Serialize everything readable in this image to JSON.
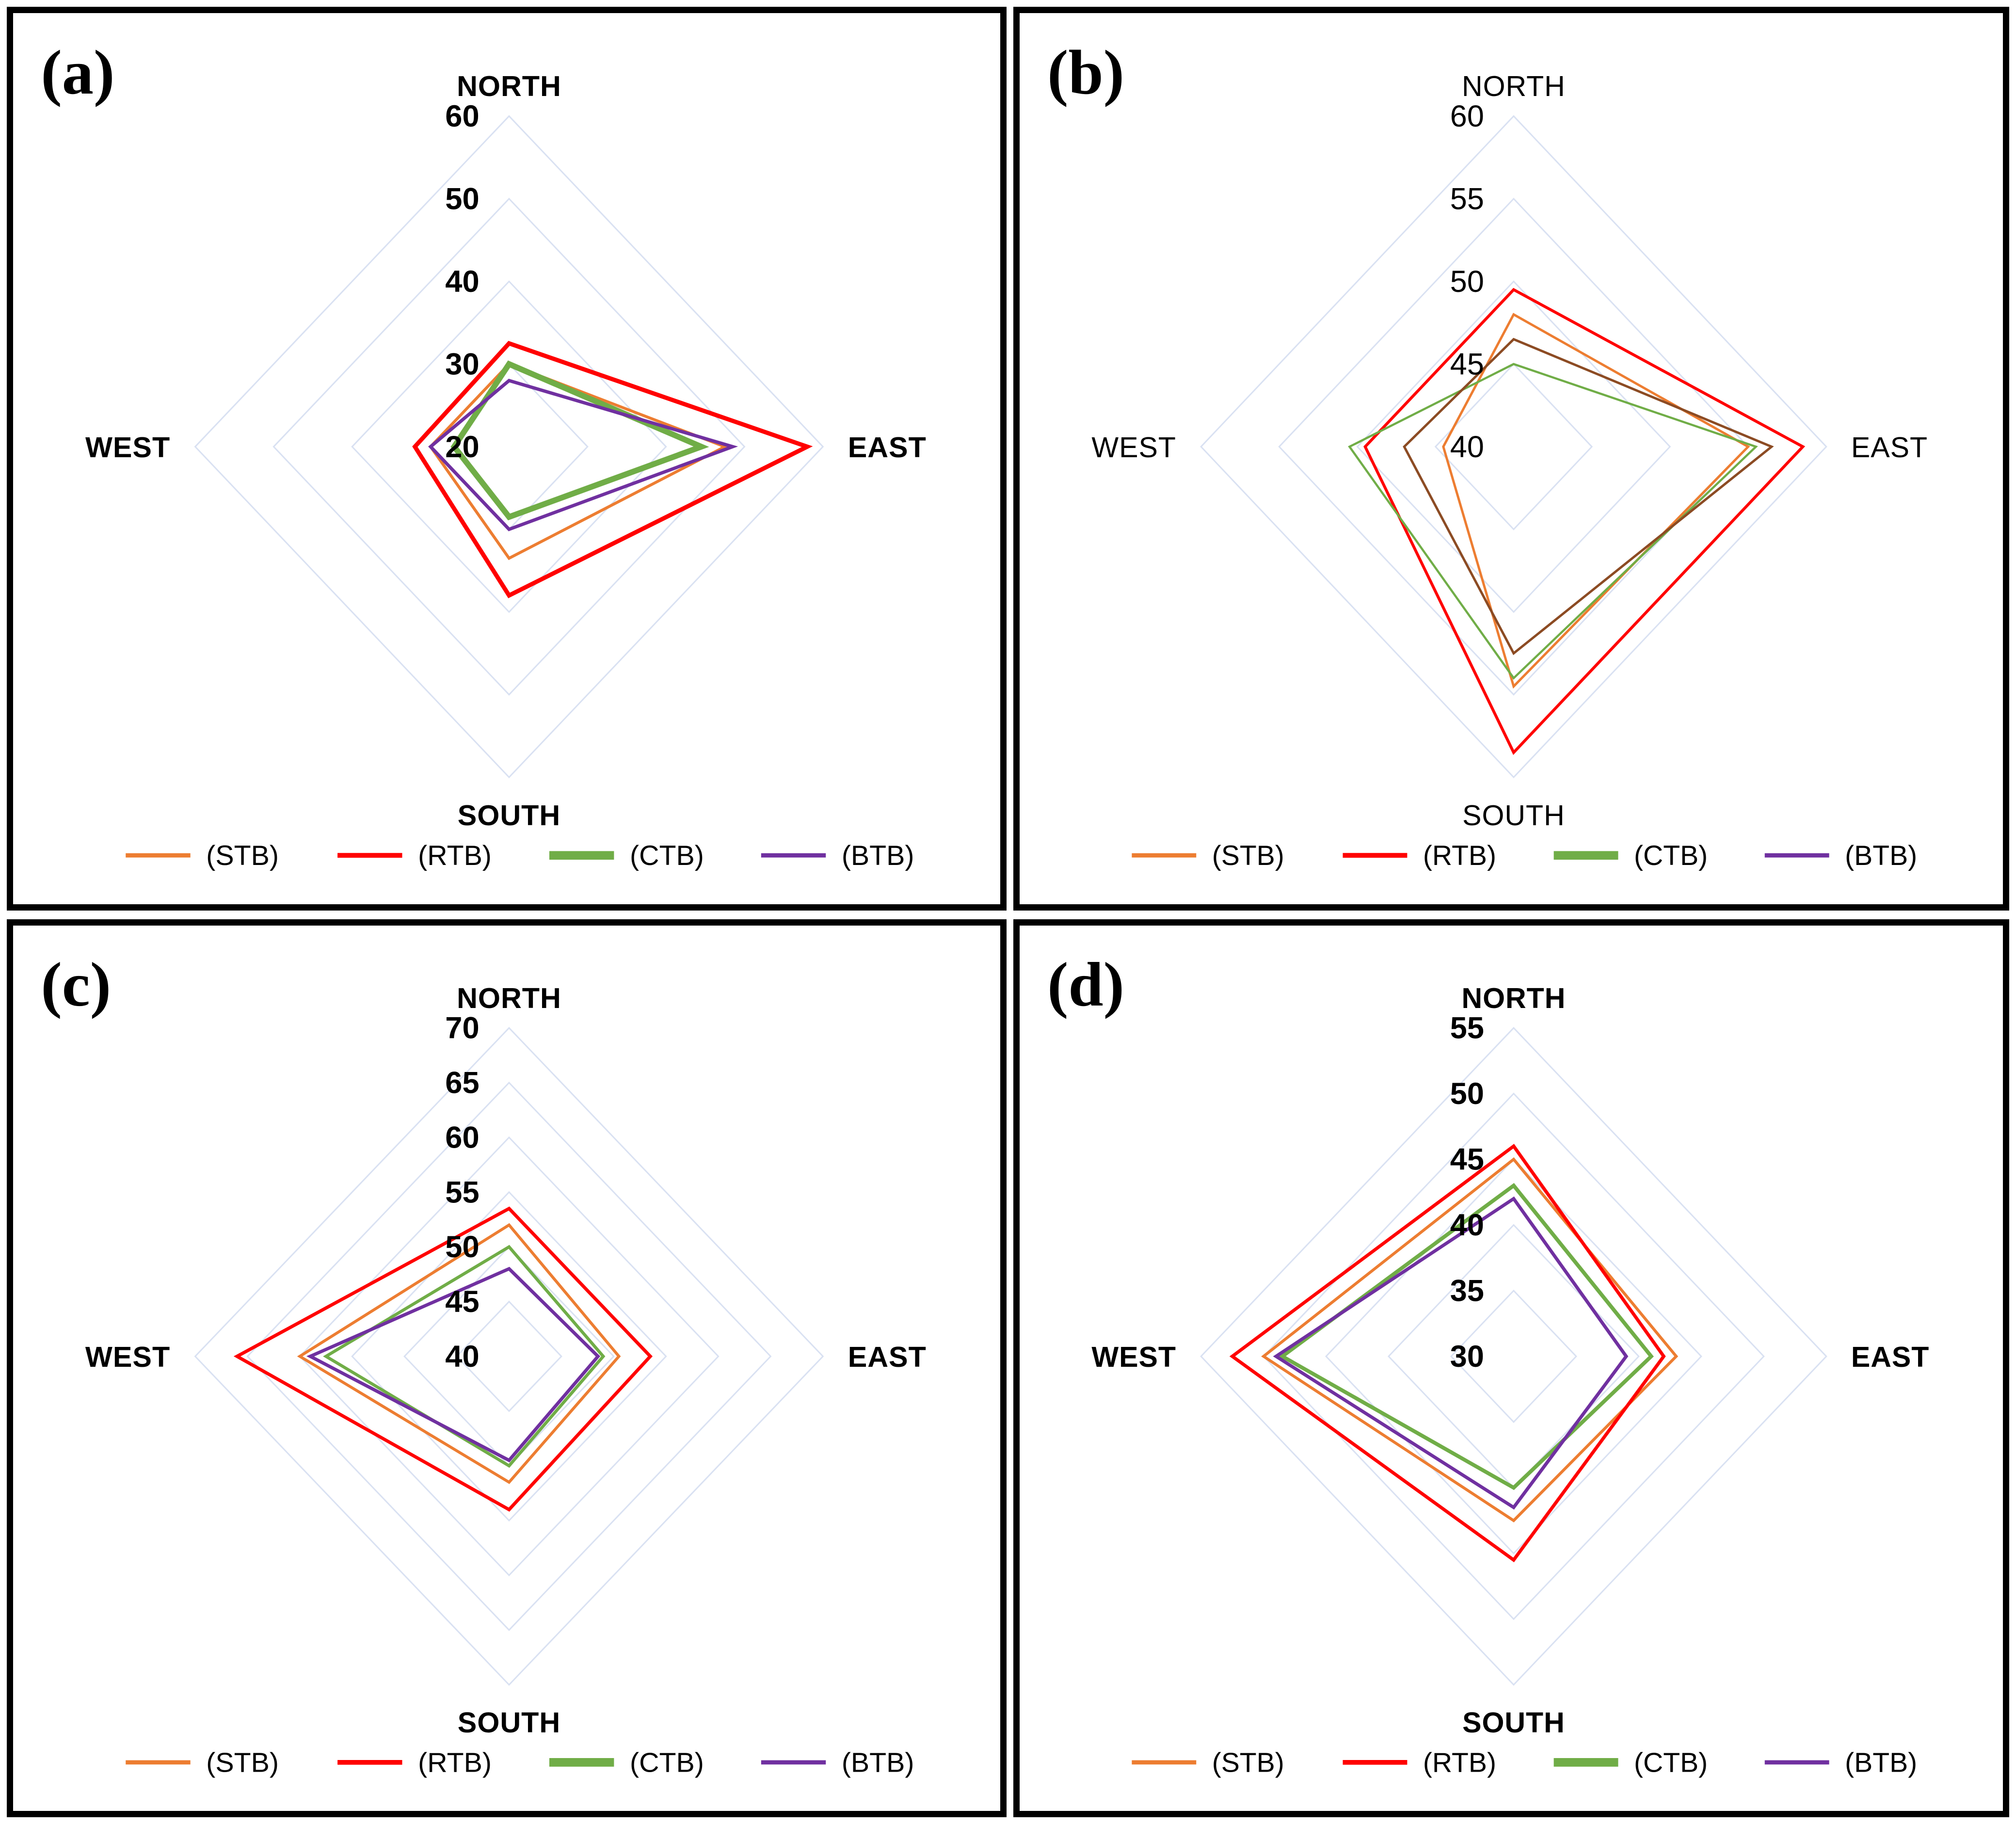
{
  "figure": {
    "kind": "2x2 grid of 4-axis radar (kite) charts",
    "background": "#ffffff",
    "grid_color": "#D9E1F2",
    "text_color": "#000000"
  },
  "directions": [
    "NORTH",
    "EAST",
    "SOUTH",
    "WEST"
  ],
  "legend_entries": [
    "(STB)",
    "(RTB)",
    "(CTB)",
    "(BTB)"
  ],
  "legend_colors": [
    "#ED7D31",
    "#FF0000",
    "#70AD47",
    "#7030A0"
  ],
  "legend_swatch_thickness": [
    9,
    10,
    18,
    9
  ],
  "chart_data": [
    {
      "type": "radar",
      "panel_label": "(a)",
      "categories": [
        "NORTH",
        "EAST",
        "SOUTH",
        "WEST"
      ],
      "axis": {
        "min": 20,
        "max": 60,
        "step": 10,
        "tick_labels": [
          60,
          50,
          40,
          30,
          20
        ],
        "grid": "concentric-diamonds",
        "grid_on": true
      },
      "label_style": "bold",
      "legend_position": "bottom",
      "series": [
        {
          "name": "(STB)",
          "color": "#ED7D31",
          "stroke": 6,
          "values": [
            30,
            47.5,
            33.5,
            30
          ]
        },
        {
          "name": "(RTB)",
          "color": "#FF0000",
          "stroke": 9,
          "values": [
            32.5,
            58,
            38,
            32
          ]
        },
        {
          "name": "(CTB)",
          "color": "#70AD47",
          "stroke": 12,
          "values": [
            30,
            44.5,
            28.5,
            27
          ]
        },
        {
          "name": "(BTB)",
          "color": "#7030A0",
          "stroke": 7,
          "values": [
            28,
            48.5,
            30,
            30
          ]
        }
      ]
    },
    {
      "type": "radar",
      "panel_label": "(b)",
      "categories": [
        "NORTH",
        "EAST",
        "SOUTH",
        "WEST"
      ],
      "axis": {
        "min": 40,
        "max": 60,
        "step": 5,
        "tick_labels": [
          60,
          55,
          50,
          45,
          40
        ],
        "grid": "concentric-diamonds",
        "grid_on": true
      },
      "label_style": "normal",
      "legend_position": "bottom",
      "series": [
        {
          "name": "(STB)",
          "color": "#ED7D31",
          "stroke": 5,
          "values": [
            48,
            55,
            54.5,
            44.5
          ]
        },
        {
          "name": "(RTB)",
          "color": "#FF0000",
          "stroke": 6,
          "values": [
            49.5,
            58.5,
            58.5,
            49.5
          ]
        },
        {
          "name": "(CTB)",
          "color": "#70AD47",
          "stroke": 4.5,
          "values": [
            45,
            55.5,
            54,
            50.5
          ]
        },
        {
          "name": "(BTB)",
          "color": "#7030A0",
          "plot_color": "#8C4B23",
          "stroke": 5,
          "values": [
            46.5,
            56.5,
            52.5,
            47
          ]
        }
      ]
    },
    {
      "type": "radar",
      "panel_label": "(c)",
      "categories": [
        "NORTH",
        "EAST",
        "SOUTH",
        "WEST"
      ],
      "axis": {
        "min": 40,
        "max": 70,
        "step": 5,
        "tick_labels": [
          70,
          65,
          60,
          55,
          50,
          45,
          40
        ],
        "grid": "concentric-diamonds",
        "grid_on": true
      },
      "label_style": "bold",
      "legend_position": "bottom",
      "series": [
        {
          "name": "(STB)",
          "color": "#ED7D31",
          "stroke": 6,
          "values": [
            52,
            50.5,
            51.5,
            60
          ]
        },
        {
          "name": "(RTB)",
          "color": "#FF0000",
          "stroke": 7,
          "values": [
            53.5,
            53.5,
            54,
            66
          ]
        },
        {
          "name": "(CTB)",
          "color": "#70AD47",
          "stroke": 6.5,
          "values": [
            50,
            49,
            50,
            57.5
          ]
        },
        {
          "name": "(BTB)",
          "color": "#7030A0",
          "stroke": 7,
          "values": [
            48,
            48.5,
            49.5,
            59
          ]
        }
      ]
    },
    {
      "type": "radar",
      "panel_label": "(d)",
      "categories": [
        "NORTH",
        "EAST",
        "SOUTH",
        "WEST"
      ],
      "axis": {
        "min": 30,
        "max": 55,
        "step": 5,
        "tick_labels": [
          55,
          50,
          45,
          40,
          35,
          30
        ],
        "grid": "concentric-diamonds",
        "grid_on": true
      },
      "label_style": "bold",
      "legend_position": "bottom",
      "series": [
        {
          "name": "(STB)",
          "color": "#ED7D31",
          "stroke": 6,
          "values": [
            45,
            43,
            42.5,
            50
          ]
        },
        {
          "name": "(RTB)",
          "color": "#FF0000",
          "stroke": 7,
          "values": [
            46,
            42,
            45.5,
            52.5
          ]
        },
        {
          "name": "(CTB)",
          "color": "#70AD47",
          "stroke": 8,
          "values": [
            43,
            41,
            40,
            48.5
          ]
        },
        {
          "name": "(BTB)",
          "color": "#7030A0",
          "stroke": 7,
          "values": [
            42,
            39,
            41.5,
            49
          ]
        }
      ]
    }
  ]
}
